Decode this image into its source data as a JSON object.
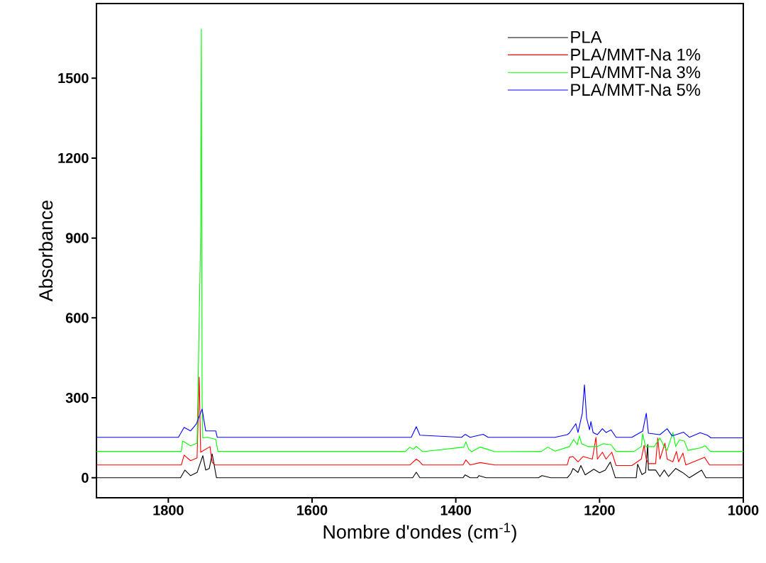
{
  "chart_data": {
    "type": "line",
    "xlabel": "Nombre d'ondes (cm$^{-1}$)",
    "ylabel": "Absorbance",
    "xlim": [
      1900,
      1000
    ],
    "ylim": [
      -75,
      1780
    ],
    "xticks": [
      1800,
      1600,
      1400,
      1200,
      1000
    ],
    "yticks": [
      0,
      300,
      600,
      900,
      1200,
      1500
    ],
    "legend": "top right",
    "marker": "none",
    "line_style": "solid",
    "grid": false,
    "series": [
      {
        "name": "PLA",
        "color": "#000000",
        "x": [
          1900,
          1783,
          1777,
          1769,
          1760,
          1752,
          1748,
          1743,
          1739,
          1733,
          1460,
          1455,
          1450,
          1390,
          1387,
          1380,
          1370,
          1368,
          1358,
          1285,
          1280,
          1268,
          1245,
          1240,
          1237,
          1230,
          1226,
          1220,
          1208,
          1200,
          1192,
          1185,
          1178,
          1149,
          1147,
          1141,
          1136,
          1133,
          1132,
          1122,
          1116,
          1110,
          1104,
          1094,
          1084,
          1075,
          1058,
          1052,
          1000
        ],
        "values": [
          0,
          0,
          29,
          8,
          20,
          83,
          29,
          35,
          90,
          0,
          0,
          21,
          0,
          0,
          11,
          0,
          0,
          8,
          0,
          0,
          8,
          0,
          0,
          16,
          35,
          20,
          46,
          11,
          32,
          19,
          29,
          59,
          0,
          0,
          51,
          12,
          20,
          125,
          29,
          29,
          5,
          29,
          5,
          35,
          19,
          0,
          29,
          0,
          0
        ]
      },
      {
        "name": "PLA/MMT-Na 1%",
        "color": "#ff0000",
        "x": [
          1900,
          1782,
          1778,
          1769,
          1760,
          1757,
          1755,
          1742,
          1739,
          1735,
          1464,
          1455,
          1450,
          1446,
          1390,
          1386,
          1380,
          1366,
          1346,
          1245,
          1242,
          1237,
          1230,
          1223,
          1210,
          1205,
          1203,
          1196,
          1191,
          1183,
          1177,
          1155,
          1142,
          1138,
          1135,
          1132,
          1122,
          1119,
          1116,
          1109,
          1106,
          1098,
          1093,
          1090,
          1084,
          1080,
          1054,
          1047,
          1000
        ],
        "values": [
          48,
          48,
          85,
          64,
          75,
          378,
          96,
          117,
          58,
          48,
          48,
          70,
          60,
          48,
          48,
          67,
          48,
          57,
          48,
          48,
          77,
          80,
          60,
          80,
          70,
          152,
          70,
          96,
          70,
          96,
          46,
          46,
          70,
          122,
          70,
          53,
          53,
          149,
          70,
          130,
          70,
          60,
          99,
          60,
          93,
          48,
          77,
          48,
          48
        ]
      },
      {
        "name": "PLA/MMT-Na 3%",
        "color": "#00ff00",
        "x": [
          1900,
          1782,
          1780,
          1769,
          1760,
          1755,
          1754,
          1753,
          1752,
          1745,
          1734,
          1731,
          1470,
          1464,
          1459,
          1455,
          1450,
          1446,
          1389,
          1386,
          1382,
          1378,
          1366,
          1356,
          1346,
          1281,
          1272,
          1262,
          1242,
          1236,
          1231,
          1228,
          1225,
          1216,
          1203,
          1195,
          1184,
          1177,
          1152,
          1142,
          1140,
          1136,
          1124,
          1116,
          1110,
          1106,
          1098,
          1094,
          1089,
          1082,
          1077,
          1060,
          1053,
          1046,
          1000
        ],
        "values": [
          99,
          99,
          138,
          120,
          130,
          911,
          1684,
          300,
          150,
          152,
          144,
          99,
          99,
          115,
          107,
          118,
          107,
          98,
          115,
          135,
          107,
          98,
          115,
          107,
          98,
          99,
          115,
          100,
          117,
          144,
          124,
          157,
          128,
          117,
          117,
          128,
          124,
          99,
          99,
          117,
          165,
          117,
          117,
          149,
          117,
          103,
          170,
          117,
          142,
          138,
          103,
          112,
          120,
          99,
          99
        ]
      },
      {
        "name": "PLA/MMT-Na 5%",
        "color": "#0000ff",
        "x": [
          1900,
          1786,
          1778,
          1769,
          1761,
          1753,
          1748,
          1740,
          1734,
          1732,
          1462,
          1455,
          1450,
          1392,
          1387,
          1380,
          1362,
          1355,
          1262,
          1245,
          1242,
          1233,
          1230,
          1224,
          1221,
          1218,
          1214,
          1212,
          1209,
          1203,
          1196,
          1191,
          1184,
          1177,
          1155,
          1140,
          1135,
          1132,
          1116,
          1106,
          1099,
          1083,
          1075,
          1060,
          1050,
          1045,
          1000
        ],
        "values": [
          152,
          152,
          189,
          176,
          202,
          258,
          176,
          176,
          176,
          152,
          152,
          192,
          160,
          152,
          163,
          152,
          163,
          152,
          152,
          162,
          168,
          203,
          170,
          242,
          349,
          224,
          180,
          211,
          170,
          162,
          184,
          170,
          180,
          152,
          152,
          175,
          242,
          167,
          162,
          184,
          157,
          171,
          152,
          169,
          160,
          150,
          150
        ]
      }
    ]
  }
}
